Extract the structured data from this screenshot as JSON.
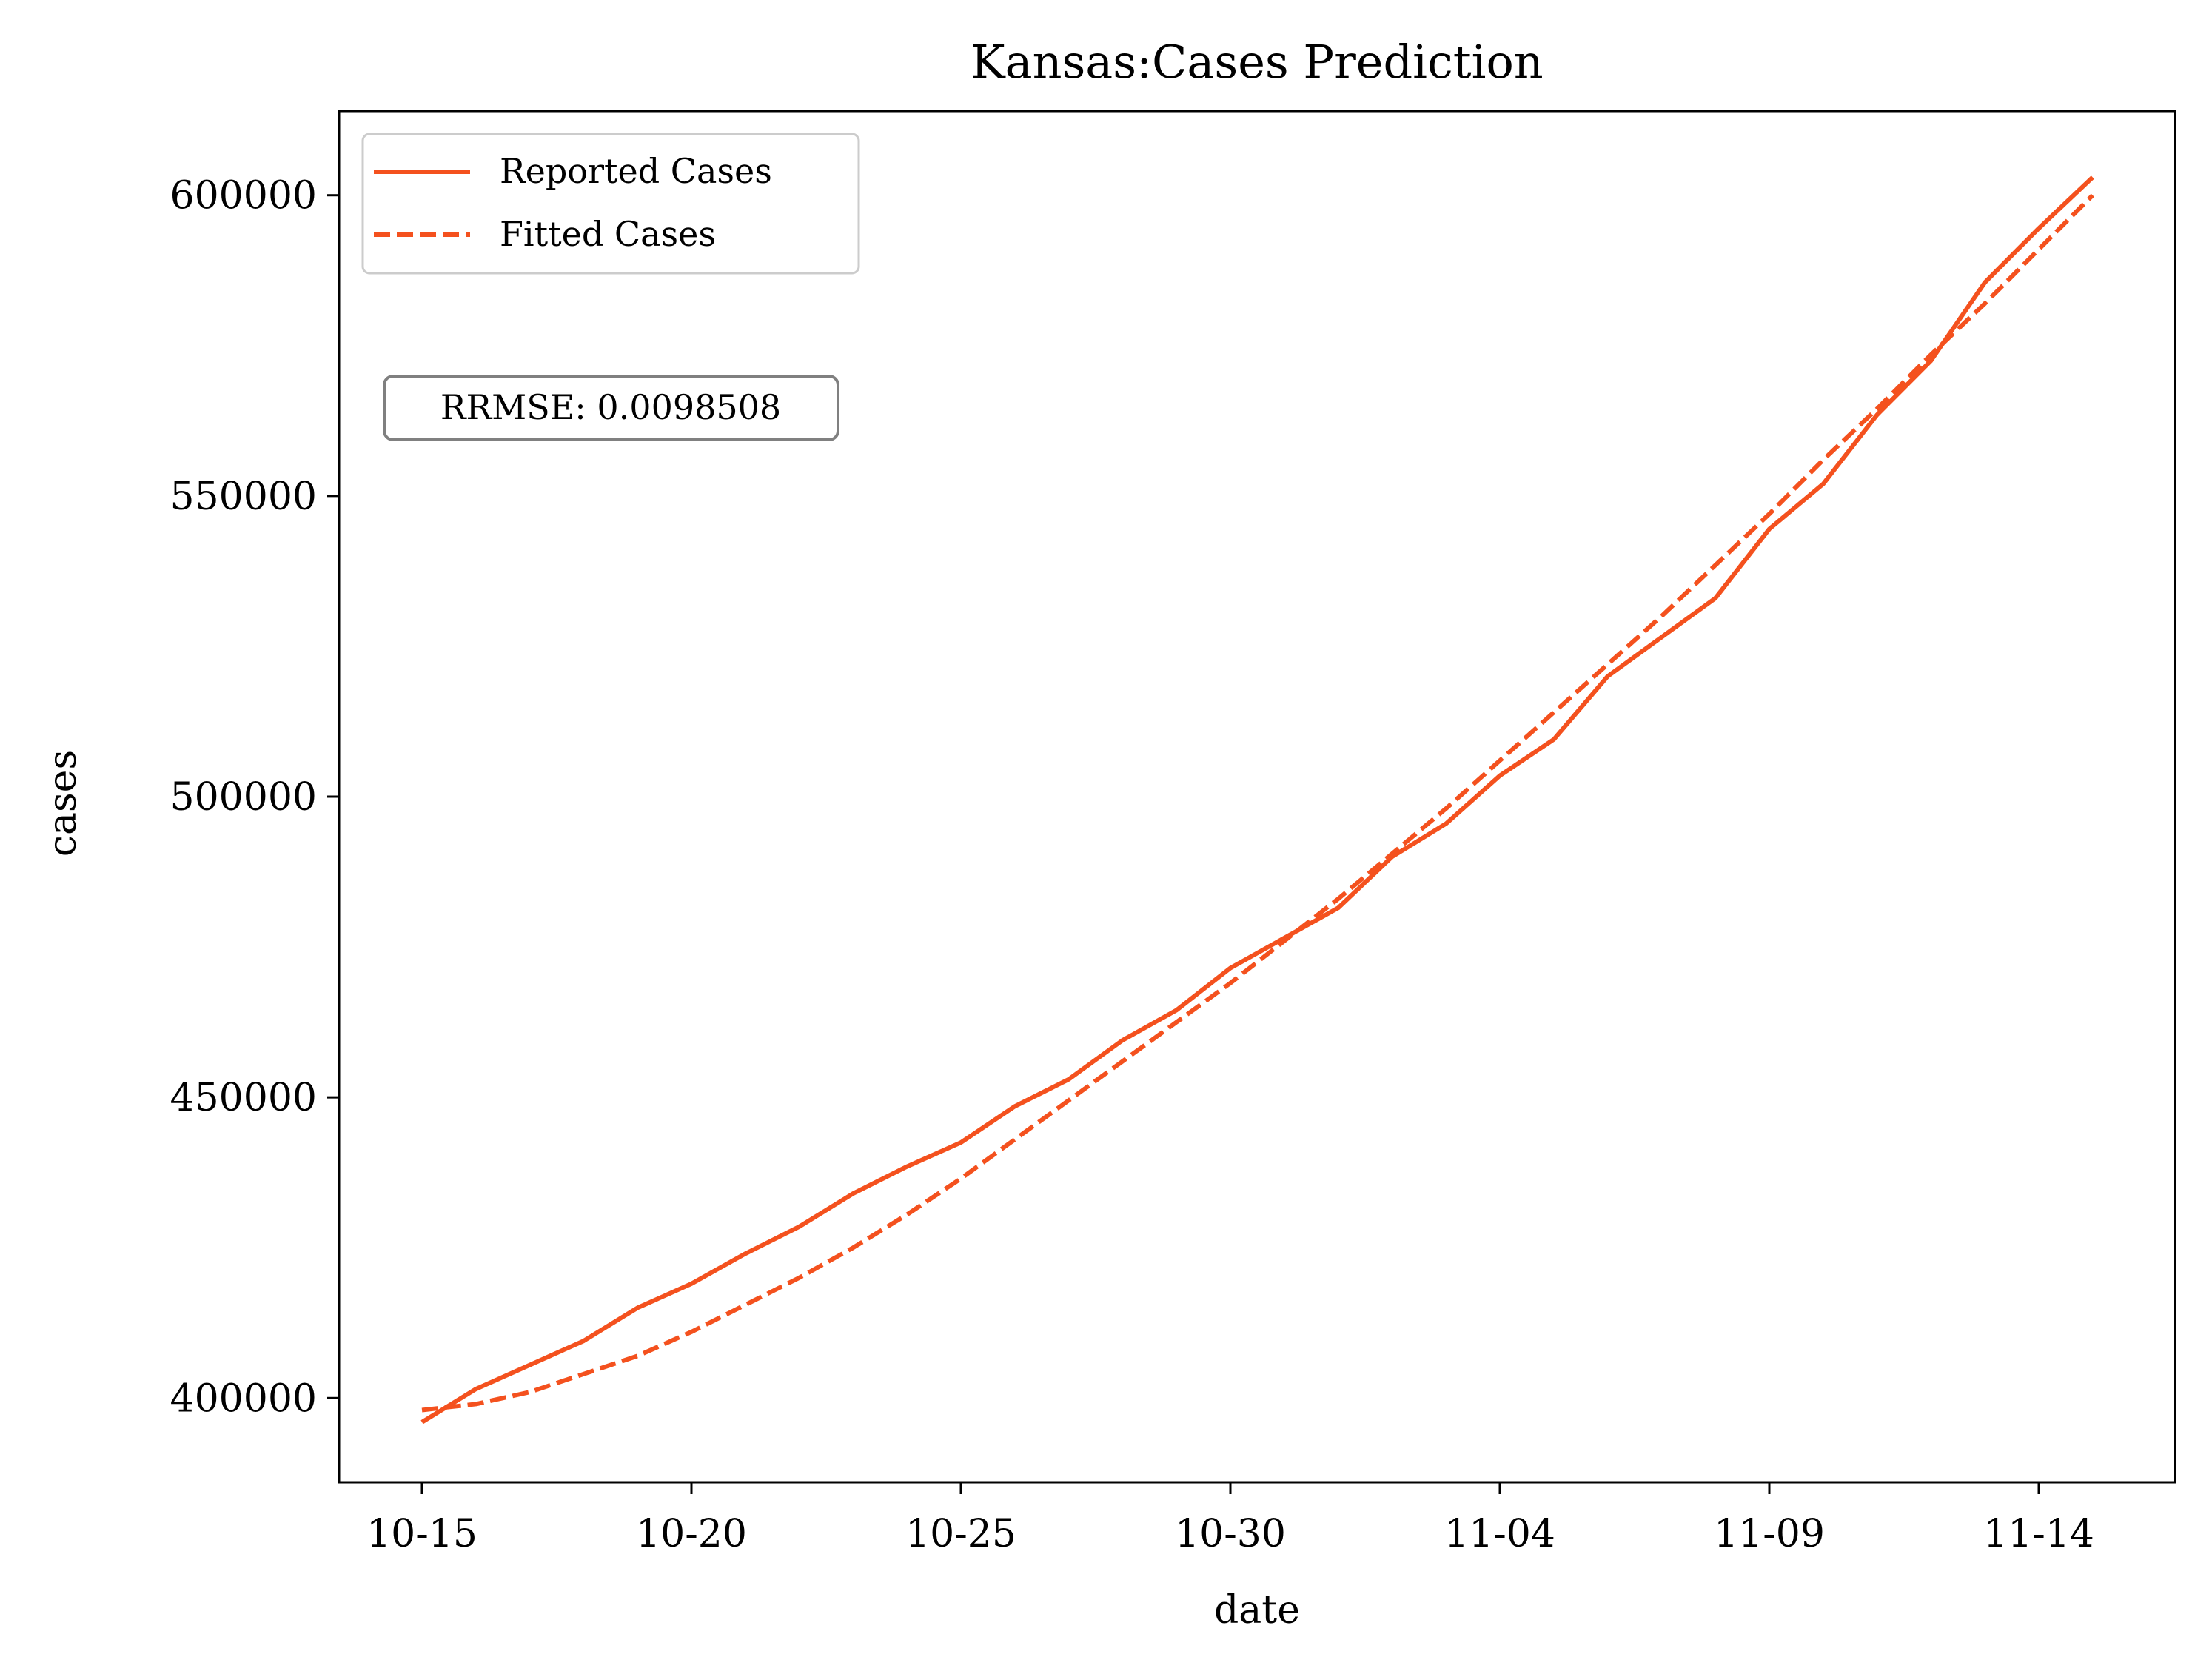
{
  "chart_data": {
    "type": "line",
    "title": "Kansas:Cases Prediction",
    "xlabel": "date",
    "ylabel": "cases",
    "x": [
      "10-15",
      "10-16",
      "10-17",
      "10-18",
      "10-19",
      "10-20",
      "10-21",
      "10-22",
      "10-23",
      "10-24",
      "10-25",
      "10-26",
      "10-27",
      "10-28",
      "10-29",
      "10-30",
      "10-31",
      "11-01",
      "11-02",
      "11-03",
      "11-04",
      "11-05",
      "11-06",
      "11-07",
      "11-08",
      "11-09",
      "11-10",
      "11-11",
      "11-12",
      "11-13",
      "11-14",
      "11-15"
    ],
    "x_ticks": [
      "10-15",
      "10-20",
      "10-25",
      "10-30",
      "11-04",
      "11-09",
      "11-14"
    ],
    "y_ticks": [
      400000,
      450000,
      500000,
      550000,
      600000
    ],
    "ylim": [
      386000,
      614000
    ],
    "series": [
      {
        "name": "Reported Cases",
        "style": "solid",
        "color": "#f4511e",
        "values": [
          396000,
          401500,
          405500,
          409500,
          415000,
          419000,
          424000,
          428500,
          434000,
          438500,
          442500,
          448500,
          453000,
          459500,
          464500,
          471500,
          476500,
          481500,
          490000,
          495500,
          503500,
          509500,
          520000,
          526500,
          533000,
          544500,
          552000,
          563500,
          572500,
          585500,
          594500,
          603000
        ]
      },
      {
        "name": "Fitted Cases",
        "style": "dashed",
        "color": "#f4511e",
        "values": [
          398000,
          399000,
          401000,
          404000,
          407000,
          411000,
          415500,
          420000,
          425000,
          430500,
          436500,
          443000,
          449500,
          456000,
          462500,
          469000,
          476000,
          483000,
          490500,
          498000,
          506000,
          514000,
          522000,
          530000,
          538500,
          547000,
          556000,
          564500,
          573500,
          582000,
          591000,
          600000
        ]
      }
    ],
    "legend_position": "top-left",
    "annotation": "RRMSE: 0.0098508",
    "grid": false
  }
}
